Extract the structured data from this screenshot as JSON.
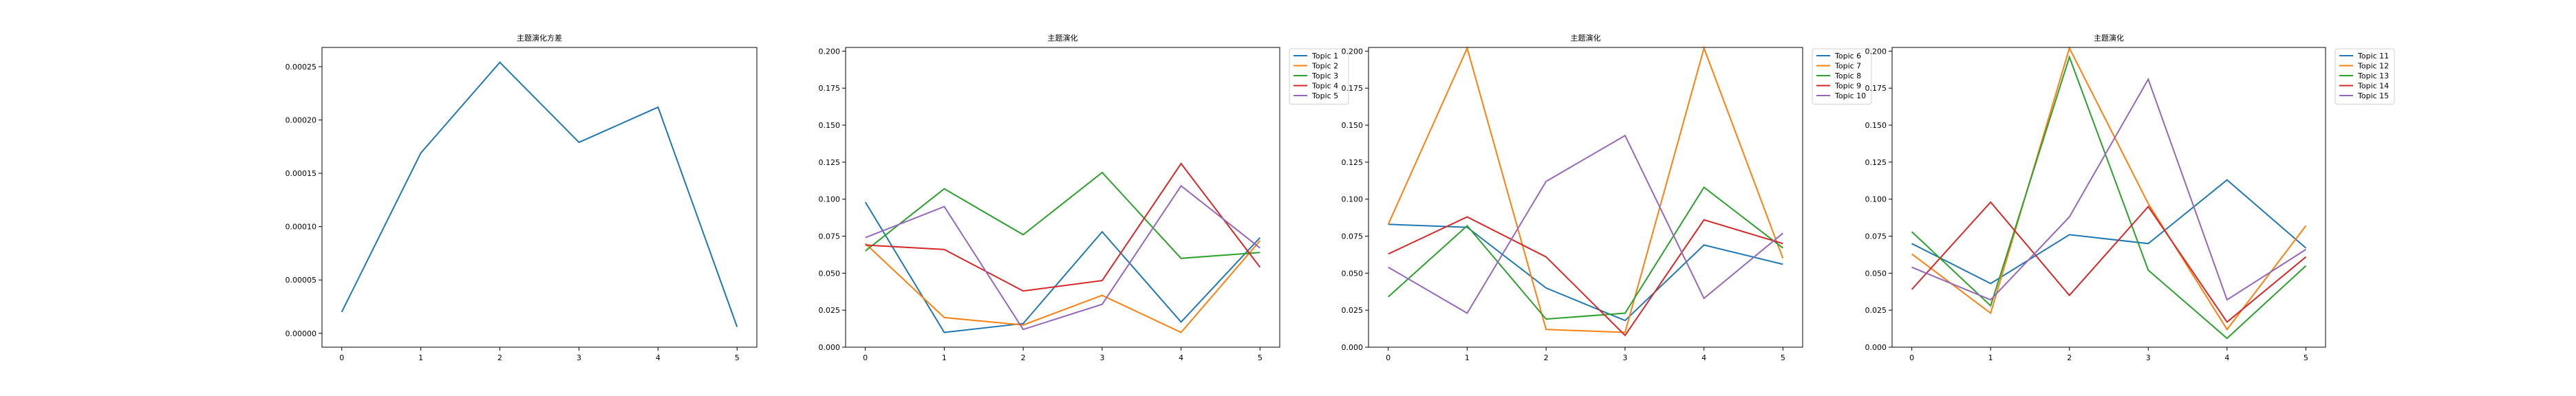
{
  "colors": [
    "#1f77b4",
    "#ff7f0e",
    "#2ca02c",
    "#d62728",
    "#9467bd"
  ],
  "chart_data": [
    {
      "type": "line",
      "title": "主题演化方差",
      "x": [
        0,
        1,
        2,
        3,
        4,
        5
      ],
      "xticks": [
        "0",
        "1",
        "2",
        "3",
        "4",
        "5"
      ],
      "yticks": [
        "0.00000",
        "0.00005",
        "0.00010",
        "0.00015",
        "0.00020",
        "0.00025"
      ],
      "ytick_values": [
        0,
        5e-05,
        0.0001,
        0.00015,
        0.0002,
        0.00025
      ],
      "xlim": [
        -0.25,
        5.25
      ],
      "ylim": [
        -1.3e-05,
        0.000268
      ],
      "grid": false,
      "series": [
        {
          "values": [
            2e-05,
            0.000169,
            0.000254,
            0.000179,
            0.000212,
            6e-06
          ]
        }
      ]
    },
    {
      "type": "line",
      "title": "主题演化",
      "x": [
        0,
        1,
        2,
        3,
        4,
        5
      ],
      "xticks": [
        "0",
        "1",
        "2",
        "3",
        "4",
        "5"
      ],
      "yticks": [
        "0.000",
        "0.025",
        "0.050",
        "0.075",
        "0.100",
        "0.125",
        "0.150",
        "0.175",
        "0.200"
      ],
      "ytick_values": [
        0,
        0.025,
        0.05,
        0.075,
        0.1,
        0.125,
        0.15,
        0.175,
        0.2
      ],
      "xlim": [
        -0.25,
        5.25
      ],
      "ylim": [
        0,
        0.2025
      ],
      "grid": false,
      "legend_position": "outside-right",
      "series": [
        {
          "name": "Topic 1",
          "values": [
            0.098,
            0.01,
            0.016,
            0.078,
            0.017,
            0.074
          ]
        },
        {
          "name": "Topic 2",
          "values": [
            0.07,
            0.02,
            0.015,
            0.035,
            0.01,
            0.072
          ]
        },
        {
          "name": "Topic 3",
          "values": [
            0.065,
            0.107,
            0.076,
            0.118,
            0.06,
            0.064
          ]
        },
        {
          "name": "Topic 4",
          "values": [
            0.069,
            0.066,
            0.038,
            0.045,
            0.124,
            0.054
          ]
        },
        {
          "name": "Topic 5",
          "values": [
            0.074,
            0.095,
            0.012,
            0.029,
            0.109,
            0.067
          ]
        }
      ]
    },
    {
      "type": "line",
      "title": "主题演化",
      "x": [
        0,
        1,
        2,
        3,
        4,
        5
      ],
      "xticks": [
        "0",
        "1",
        "2",
        "3",
        "4",
        "5"
      ],
      "yticks": [
        "0.000",
        "0.025",
        "0.050",
        "0.075",
        "0.100",
        "0.125",
        "0.150",
        "0.175",
        "0.200"
      ],
      "ytick_values": [
        0,
        0.025,
        0.05,
        0.075,
        0.1,
        0.125,
        0.15,
        0.175,
        0.2
      ],
      "xlim": [
        -0.25,
        5.25
      ],
      "ylim": [
        0,
        0.2025
      ],
      "grid": false,
      "legend_position": "outside-right",
      "series": [
        {
          "name": "Topic 6",
          "values": [
            0.083,
            0.081,
            0.04,
            0.018,
            0.069,
            0.056
          ]
        },
        {
          "name": "Topic 7",
          "values": [
            0.083,
            0.202,
            0.012,
            0.01,
            0.202,
            0.06
          ]
        },
        {
          "name": "Topic 8",
          "values": [
            0.034,
            0.082,
            0.019,
            0.023,
            0.108,
            0.067
          ]
        },
        {
          "name": "Topic 9",
          "values": [
            0.063,
            0.088,
            0.061,
            0.008,
            0.086,
            0.07
          ]
        },
        {
          "name": "Topic 10",
          "values": [
            0.054,
            0.023,
            0.112,
            0.143,
            0.033,
            0.077
          ]
        }
      ]
    },
    {
      "type": "line",
      "title": "主题演化",
      "x": [
        0,
        1,
        2,
        3,
        4,
        5
      ],
      "xticks": [
        "0",
        "1",
        "2",
        "3",
        "4",
        "5"
      ],
      "yticks": [
        "0.000",
        "0.025",
        "0.050",
        "0.075",
        "0.100",
        "0.125",
        "0.150",
        "0.175",
        "0.200"
      ],
      "ytick_values": [
        0,
        0.025,
        0.05,
        0.075,
        0.1,
        0.125,
        0.15,
        0.175,
        0.2
      ],
      "xlim": [
        -0.25,
        5.25
      ],
      "ylim": [
        0,
        0.2025
      ],
      "grid": false,
      "legend_position": "outside-right",
      "series": [
        {
          "name": "Topic 11",
          "values": [
            0.07,
            0.043,
            0.076,
            0.07,
            0.113,
            0.067
          ]
        },
        {
          "name": "Topic 12",
          "values": [
            0.063,
            0.023,
            0.202,
            0.097,
            0.012,
            0.082
          ]
        },
        {
          "name": "Topic 13",
          "values": [
            0.078,
            0.028,
            0.196,
            0.052,
            0.006,
            0.055
          ]
        },
        {
          "name": "Topic 14",
          "values": [
            0.039,
            0.098,
            0.035,
            0.095,
            0.017,
            0.061
          ]
        },
        {
          "name": "Topic 15",
          "values": [
            0.054,
            0.032,
            0.088,
            0.181,
            0.032,
            0.066
          ]
        }
      ]
    }
  ]
}
